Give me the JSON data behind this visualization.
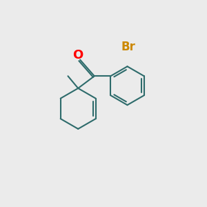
{
  "background_color": "#ebebeb",
  "bond_color": "#2d6b6b",
  "bond_width": 1.5,
  "figsize": [
    3.0,
    3.0
  ],
  "dpi": 100,
  "atom_colors": {
    "O": "#ff0000",
    "Br": "#cc8800"
  },
  "font_size_O": 13,
  "font_size_Br": 12
}
